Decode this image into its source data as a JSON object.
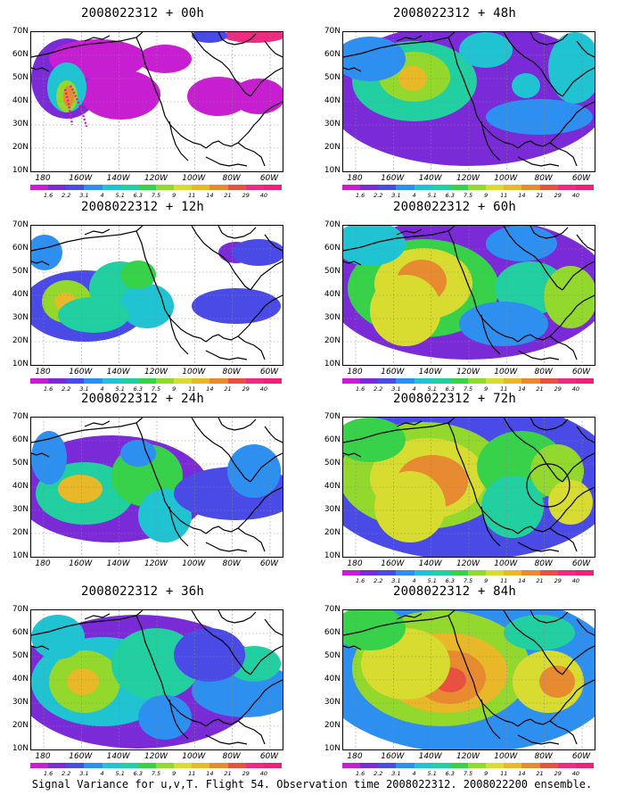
{
  "figure_caption": "Signal Variance for u,v,T. Flight 54. Observation time 2008022312. 2008022200 ensemble.",
  "lat_labels": [
    "70N",
    "60N",
    "50N",
    "40N",
    "30N",
    "20N",
    "10N"
  ],
  "lon_labels": [
    "180",
    "160W",
    "140W",
    "120W",
    "100W",
    "80W",
    "60W"
  ],
  "colorbar": {
    "labels": [
      "1.6",
      "2.2",
      "3.1",
      "4",
      "5.1",
      "6.3",
      "7.5",
      "9",
      "11",
      "14",
      "21",
      "29",
      "40"
    ],
    "colors": [
      "#c81ed2",
      "#7a2ad6",
      "#4a4ae6",
      "#2d8ff0",
      "#1fc3d2",
      "#22cfa0",
      "#37d24a",
      "#93d82c",
      "#d8dc30",
      "#e8b828",
      "#e88a30",
      "#e85040",
      "#f02a80",
      "#f0207a"
    ]
  },
  "panels": [
    {
      "id": "p00",
      "title": "2008022312 + 00h",
      "intensity": 1,
      "show_colorbar": true
    },
    {
      "id": "p48",
      "title": "2008022312 + 48h",
      "intensity": 4,
      "show_colorbar": true
    },
    {
      "id": "p12",
      "title": "2008022312 + 12h",
      "intensity": 2,
      "show_colorbar": true
    },
    {
      "id": "p60",
      "title": "2008022312 + 60h",
      "intensity": 5,
      "show_colorbar": true
    },
    {
      "id": "p24",
      "title": "2008022312 + 24h",
      "intensity": 3,
      "show_colorbar": false
    },
    {
      "id": "p72",
      "title": "2008022312 + 72h",
      "intensity": 6,
      "show_colorbar": true
    },
    {
      "id": "p36",
      "title": "2008022312 + 36h",
      "intensity": 3,
      "show_colorbar": true
    },
    {
      "id": "p84",
      "title": "2008022312 + 84h",
      "intensity": 7,
      "show_colorbar": true
    }
  ]
}
